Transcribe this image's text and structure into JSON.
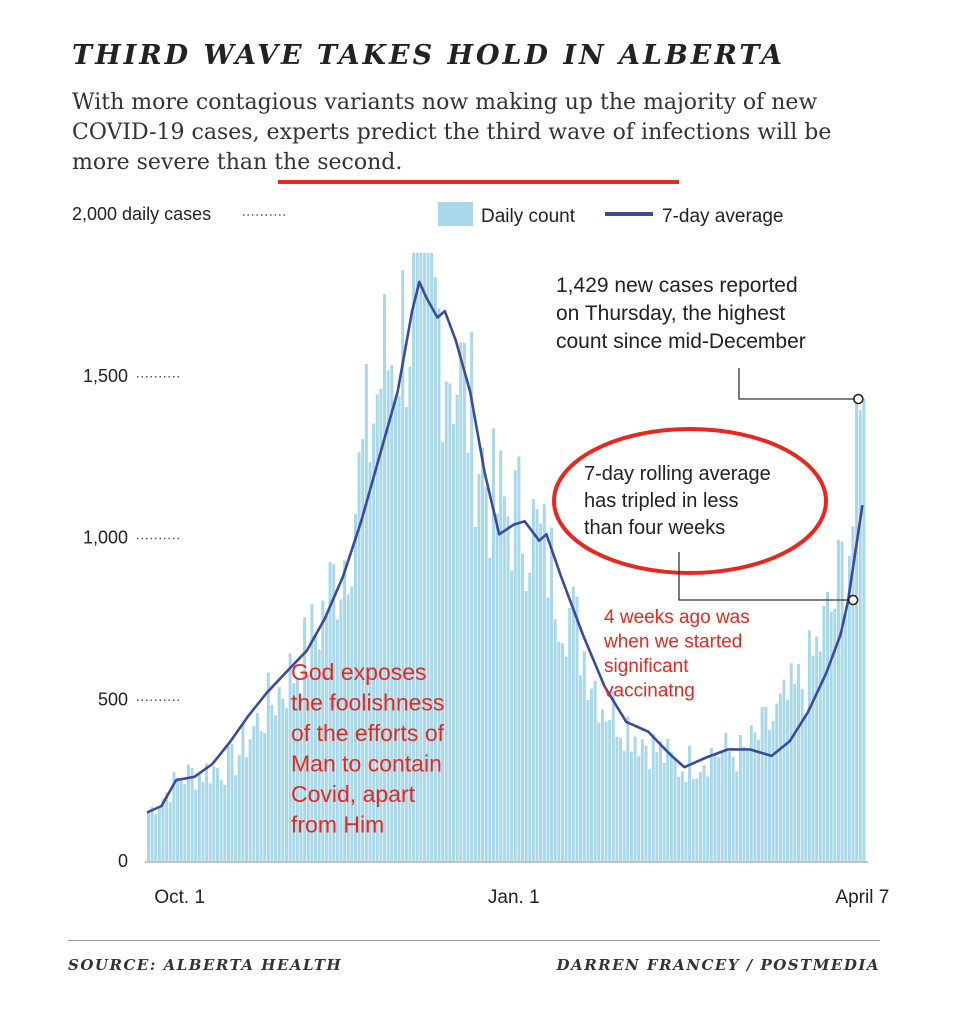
{
  "title": "THIRD WAVE TAKES HOLD IN ALBERTA",
  "subtitle": "With more contagious variants now making up the majority of new COVID-19 cases, experts predict the third wave of infections will be more severe than the second.",
  "source": "SOURCE: ALBERTA HEALTH",
  "credit": "DARREN FRANCEY / POSTMEDIA",
  "colors": {
    "bars": "#a8d8ea",
    "line": "#3b4a9a",
    "annotation_red": "#e8281e",
    "text": "#222222"
  },
  "annotations": {
    "peak_note": [
      "1,429 new cases reported",
      "on Thursday, the highest",
      "count since mid-December"
    ],
    "circled_note": [
      "7-day rolling average",
      "has tripled in less",
      "than four weeks"
    ],
    "red_note": [
      "4 weeks ago was",
      "when we started",
      "significant",
      "vaccinatng"
    ],
    "god_note": [
      "God exposes",
      "the foolishness",
      "of the efforts of",
      "Man to contain",
      "Covid, apart",
      "from Him"
    ]
  },
  "chart_data": {
    "type": "bar",
    "title": "THIRD WAVE TAKES HOLD IN ALBERTA",
    "xlabel": "",
    "ylabel": "",
    "ylim": [
      0,
      2000
    ],
    "yticks": [
      {
        "value": 0,
        "label": "0"
      },
      {
        "value": 500,
        "label": "500"
      },
      {
        "value": 1000,
        "label": "1,000"
      },
      {
        "value": 1500,
        "label": "1,500"
      },
      {
        "value": 2000,
        "label": "2,000 daily cases"
      }
    ],
    "xticks": [
      {
        "date": "2020-10-01",
        "label": "Oct. 1"
      },
      {
        "date": "2021-01-01",
        "label": "Jan. 1"
      },
      {
        "date": "2021-04-07",
        "label": "April 7"
      }
    ],
    "x_start": "2020-09-22",
    "x_end": "2021-04-08",
    "grid": false,
    "legend": {
      "position": "top-right",
      "entries": [
        {
          "name": "Daily count",
          "kind": "bar"
        },
        {
          "name": "7-day average",
          "kind": "line"
        }
      ]
    },
    "series": [
      {
        "name": "Daily count",
        "kind": "bar",
        "anchors": [
          {
            "date": "2020-09-22",
            "value": 150
          },
          {
            "date": "2020-10-01",
            "value": 260
          },
          {
            "date": "2020-10-15",
            "value": 300
          },
          {
            "date": "2020-10-25",
            "value": 480
          },
          {
            "date": "2020-11-05",
            "value": 650
          },
          {
            "date": "2020-11-15",
            "value": 950
          },
          {
            "date": "2020-11-25",
            "value": 1500
          },
          {
            "date": "2020-12-05",
            "value": 1750
          },
          {
            "date": "2020-12-10",
            "value": 1700
          },
          {
            "date": "2020-12-18",
            "value": 1450
          },
          {
            "date": "2020-12-26",
            "value": 1100
          },
          {
            "date": "2021-01-05",
            "value": 1050
          },
          {
            "date": "2021-01-15",
            "value": 800
          },
          {
            "date": "2021-01-25",
            "value": 500
          },
          {
            "date": "2021-02-05",
            "value": 380
          },
          {
            "date": "2021-02-15",
            "value": 290
          },
          {
            "date": "2021-02-25",
            "value": 340
          },
          {
            "date": "2021-03-05",
            "value": 330
          },
          {
            "date": "2021-03-15",
            "value": 460
          },
          {
            "date": "2021-03-22",
            "value": 560
          },
          {
            "date": "2021-03-30",
            "value": 800
          },
          {
            "date": "2021-04-04",
            "value": 1050
          },
          {
            "date": "2021-04-07",
            "value": 1429
          }
        ]
      },
      {
        "name": "7-day average",
        "kind": "line",
        "points": [
          {
            "date": "2020-09-22",
            "value": 150
          },
          {
            "date": "2020-09-26",
            "value": 170
          },
          {
            "date": "2020-09-30",
            "value": 250
          },
          {
            "date": "2020-10-05",
            "value": 260
          },
          {
            "date": "2020-10-10",
            "value": 300
          },
          {
            "date": "2020-10-15",
            "value": 370
          },
          {
            "date": "2020-10-20",
            "value": 450
          },
          {
            "date": "2020-10-25",
            "value": 520
          },
          {
            "date": "2020-10-30",
            "value": 580
          },
          {
            "date": "2020-11-05",
            "value": 650
          },
          {
            "date": "2020-11-10",
            "value": 750
          },
          {
            "date": "2020-11-15",
            "value": 880
          },
          {
            "date": "2020-11-20",
            "value": 1050
          },
          {
            "date": "2020-11-25",
            "value": 1250
          },
          {
            "date": "2020-11-30",
            "value": 1450
          },
          {
            "date": "2020-12-04",
            "value": 1700
          },
          {
            "date": "2020-12-06",
            "value": 1790
          },
          {
            "date": "2020-12-08",
            "value": 1740
          },
          {
            "date": "2020-12-11",
            "value": 1680
          },
          {
            "date": "2020-12-13",
            "value": 1700
          },
          {
            "date": "2020-12-16",
            "value": 1610
          },
          {
            "date": "2020-12-20",
            "value": 1450
          },
          {
            "date": "2020-12-24",
            "value": 1200
          },
          {
            "date": "2020-12-28",
            "value": 1010
          },
          {
            "date": "2021-01-01",
            "value": 1040
          },
          {
            "date": "2021-01-04",
            "value": 1050
          },
          {
            "date": "2021-01-08",
            "value": 990
          },
          {
            "date": "2021-01-10",
            "value": 1010
          },
          {
            "date": "2021-01-14",
            "value": 880
          },
          {
            "date": "2021-01-20",
            "value": 700
          },
          {
            "date": "2021-01-26",
            "value": 540
          },
          {
            "date": "2021-02-01",
            "value": 430
          },
          {
            "date": "2021-02-07",
            "value": 400
          },
          {
            "date": "2021-02-13",
            "value": 330
          },
          {
            "date": "2021-02-17",
            "value": 290
          },
          {
            "date": "2021-02-23",
            "value": 320
          },
          {
            "date": "2021-03-01",
            "value": 345
          },
          {
            "date": "2021-03-07",
            "value": 345
          },
          {
            "date": "2021-03-13",
            "value": 325
          },
          {
            "date": "2021-03-18",
            "value": 370
          },
          {
            "date": "2021-03-23",
            "value": 460
          },
          {
            "date": "2021-03-28",
            "value": 580
          },
          {
            "date": "2021-04-01",
            "value": 700
          },
          {
            "date": "2021-04-03",
            "value": 800
          },
          {
            "date": "2021-04-05",
            "value": 950
          },
          {
            "date": "2021-04-07",
            "value": 1100
          }
        ]
      }
    ],
    "callouts": [
      {
        "date": "2021-04-07",
        "value": 1429
      },
      {
        "date": "2021-04-05",
        "value": 815
      }
    ]
  }
}
